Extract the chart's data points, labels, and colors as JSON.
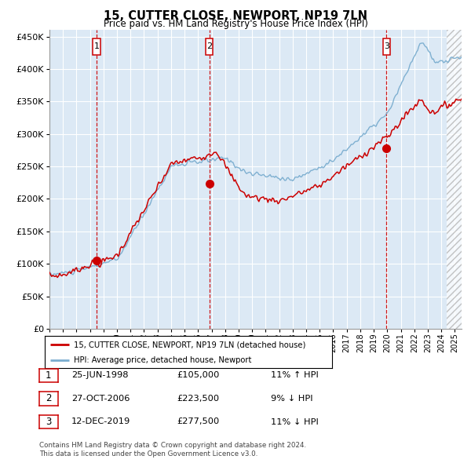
{
  "title": "15, CUTTER CLOSE, NEWPORT, NP19 7LN",
  "subtitle": "Price paid vs. HM Land Registry's House Price Index (HPI)",
  "property_label": "15, CUTTER CLOSE, NEWPORT, NP19 7LN (detached house)",
  "hpi_label": "HPI: Average price, detached house, Newport",
  "footer1": "Contains HM Land Registry data © Crown copyright and database right 2024.",
  "footer2": "This data is licensed under the Open Government Licence v3.0.",
  "sales": [
    {
      "num": 1,
      "date_str": "25-JUN-1998",
      "price": 105000,
      "pct": "11%",
      "dir": "↑",
      "date_x": 1998.49
    },
    {
      "num": 2,
      "date_str": "27-OCT-2006",
      "price": 223500,
      "pct": "9%",
      "dir": "↓",
      "date_x": 2006.83
    },
    {
      "num": 3,
      "date_str": "12-DEC-2019",
      "price": 277500,
      "pct": "11%",
      "dir": "↓",
      "date_x": 2019.95
    }
  ],
  "sale_prices": [
    105000,
    223500,
    277500
  ],
  "ylim": [
    0,
    460000
  ],
  "yticks": [
    0,
    50000,
    100000,
    150000,
    200000,
    250000,
    300000,
    350000,
    400000,
    450000
  ],
  "xlim_start": 1995,
  "xlim_end": 2025.5,
  "hatch_start": 2024.42,
  "bg_color": "#dce9f5",
  "red_line_color": "#cc0000",
  "blue_line_color": "#7aadcf",
  "vline_color": "#cc0000",
  "grid_color": "#ffffff",
  "box_color": "#cc0000"
}
